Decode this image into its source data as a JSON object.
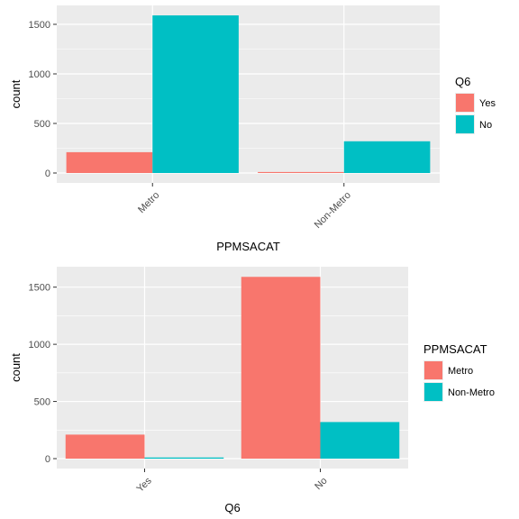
{
  "colors": {
    "red": "#F8766D",
    "teal": "#00BFC4",
    "panel": "#EBEBEB",
    "grid": "#FFFFFF"
  },
  "chart_data": [
    {
      "type": "bar",
      "categories": [
        "Metro",
        "Non-Metro"
      ],
      "xlabel": "PPMSACAT",
      "ylabel": "count",
      "ylim": [
        0,
        1600
      ],
      "yticks": [
        0,
        500,
        1000,
        1500
      ],
      "legend": {
        "title": "Q6",
        "position": "right"
      },
      "series": [
        {
          "name": "Yes",
          "color": "#F8766D",
          "values": [
            210,
            10
          ]
        },
        {
          "name": "No",
          "color": "#00BFC4",
          "values": [
            1590,
            320
          ]
        }
      ]
    },
    {
      "type": "bar",
      "categories": [
        "Yes",
        "No"
      ],
      "xlabel": "Q6",
      "ylabel": "count",
      "ylim": [
        0,
        1600
      ],
      "yticks": [
        0,
        500,
        1000,
        1500
      ],
      "legend": {
        "title": "PPMSACAT",
        "position": "right"
      },
      "series": [
        {
          "name": "Metro",
          "color": "#F8766D",
          "values": [
            210,
            1590
          ]
        },
        {
          "name": "Non-Metro",
          "color": "#00BFC4",
          "values": [
            10,
            320
          ]
        }
      ]
    }
  ]
}
